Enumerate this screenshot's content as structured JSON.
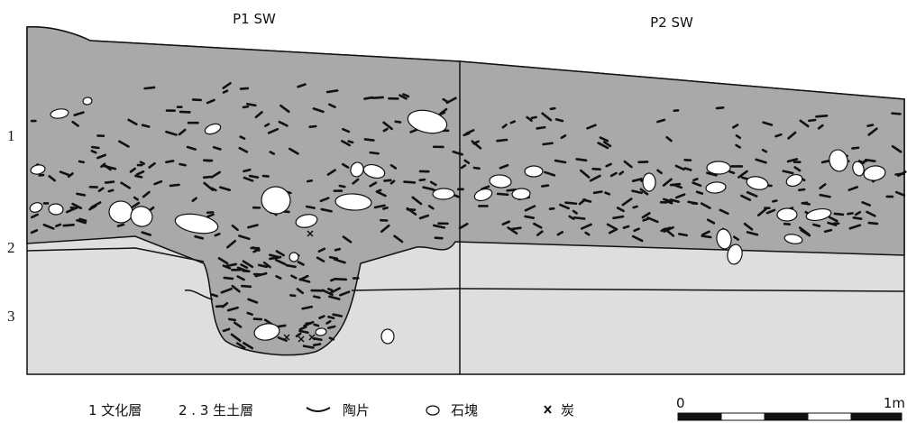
{
  "profiles": [
    "P1 SW",
    "P2 SW"
  ],
  "layer_labels": [
    "1",
    "2",
    "3"
  ],
  "legend": {
    "layers": [
      "1 文化層",
      "2 . 3 生土層"
    ],
    "sherd": "陶片",
    "stone": "石塊",
    "charcoal": "炭"
  },
  "scale": {
    "start": "0",
    "end": "1m"
  }
}
